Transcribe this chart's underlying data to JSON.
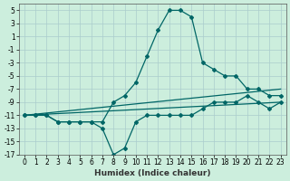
{
  "xlabel": "Humidex (Indice chaleur)",
  "background_color": "#cceedd",
  "grid_color": "#aacccc",
  "line_color": "#006666",
  "ylim": [
    -17,
    6
  ],
  "xlim": [
    -0.5,
    23.5
  ],
  "yticks": [
    5,
    3,
    1,
    -1,
    -3,
    -5,
    -7,
    -9,
    -11,
    -13,
    -15,
    -17
  ],
  "xticks": [
    0,
    1,
    2,
    3,
    4,
    5,
    6,
    7,
    8,
    9,
    10,
    11,
    12,
    13,
    14,
    15,
    16,
    17,
    18,
    19,
    20,
    21,
    22,
    23
  ],
  "series": [
    {
      "x": [
        0,
        1,
        2,
        3,
        4,
        5,
        6,
        7,
        8,
        9,
        10,
        11,
        12,
        13,
        14,
        15,
        16,
        17,
        18,
        19,
        20,
        21,
        22,
        23
      ],
      "y": [
        -11,
        -11,
        -11,
        -12,
        -12,
        -12,
        -12,
        -12,
        -9,
        -8,
        -6,
        -2,
        2,
        5,
        5,
        4,
        -3,
        -4,
        -5,
        -5,
        -7,
        -7,
        -8,
        -8
      ]
    },
    {
      "x": [
        0,
        1,
        2,
        3,
        4,
        5,
        6,
        7,
        8,
        9,
        10,
        11,
        12,
        13,
        14,
        15,
        16,
        17,
        18,
        19,
        20,
        21,
        22,
        23
      ],
      "y": [
        -11,
        -11,
        -11,
        -12,
        -12,
        -12,
        -12,
        -13,
        -17,
        -16,
        -12,
        -11,
        -11,
        -11,
        -11,
        -11,
        -10,
        -9,
        -9,
        -9,
        -8,
        -9,
        -10,
        -9
      ]
    },
    {
      "x": [
        0,
        23
      ],
      "y": [
        -11,
        -7
      ]
    },
    {
      "x": [
        0,
        23
      ],
      "y": [
        -11,
        -9
      ]
    }
  ],
  "marker": "D",
  "markersize": 2.0,
  "linewidth": 0.9,
  "tick_fontsize": 5.5,
  "xlabel_fontsize": 6.5,
  "xlabel_color": "#333333"
}
